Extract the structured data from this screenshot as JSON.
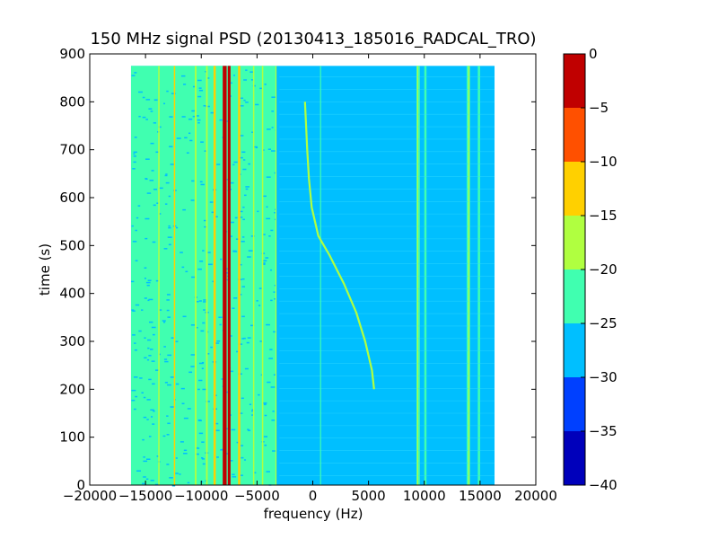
{
  "chart_data": {
    "type": "heatmap",
    "title": "150 MHz signal PSD (20130413_185016_RADCAL_TRO)",
    "xlabel": "frequency (Hz)",
    "ylabel": "time (s)",
    "xlim": [
      -20000,
      20000
    ],
    "ylim": [
      0,
      900
    ],
    "x_ticks": [
      -20000,
      -15000,
      -10000,
      -5000,
      0,
      5000,
      10000,
      15000,
      20000
    ],
    "y_ticks": [
      0,
      100,
      200,
      300,
      400,
      500,
      600,
      700,
      800,
      900
    ],
    "data_extent": {
      "x": [
        -16300,
        16300
      ],
      "y": [
        0,
        875
      ]
    },
    "background_level": -27.5,
    "colorbar": {
      "levels": [
        -40,
        -35,
        -30,
        -25,
        -20,
        -15,
        -10,
        -5,
        0
      ],
      "tick_labels": [
        "0",
        "−5",
        "−10",
        "−15",
        "−20",
        "−25",
        "−30",
        "−35",
        "−40"
      ],
      "colors": [
        "#0000bb",
        "#0040ff",
        "#00bfff",
        "#40ffb0",
        "#b0ff40",
        "#ffd000",
        "#ff5000",
        "#c00000"
      ]
    },
    "band_columns": [
      {
        "x_range": [
          -16300,
          -3300
        ],
        "level": -22.5
      },
      {
        "x_range": [
          9300,
          9600
        ],
        "level": -22.5
      },
      {
        "x_range": [
          10000,
          10200
        ],
        "level": -22.5
      },
      {
        "x_range": [
          13800,
          14100
        ],
        "level": -22.5
      },
      {
        "x_range": [
          14800,
          15000
        ],
        "level": -22.5
      }
    ],
    "carrier_lines": [
      {
        "x": -7900,
        "width_hz": 350,
        "level": -2.5
      },
      {
        "x": -7500,
        "width_hz": 250,
        "level": -2.5
      },
      {
        "x": -8800,
        "width_hz": 200,
        "level": -12.5
      },
      {
        "x": -6600,
        "width_hz": 200,
        "level": -12.5
      },
      {
        "x": -10500,
        "width_hz": 150,
        "level": -17.5
      },
      {
        "x": -9500,
        "width_hz": 150,
        "level": -17.5
      },
      {
        "x": -12400,
        "width_hz": 120,
        "level": -12.5
      },
      {
        "x": -13800,
        "width_hz": 120,
        "level": -17.5
      },
      {
        "x": -5300,
        "width_hz": 120,
        "level": -17.5
      },
      {
        "x": -4500,
        "width_hz": 120,
        "level": -17.5
      },
      {
        "x": -3300,
        "width_hz": 100,
        "level": -17.5
      },
      {
        "x": 700,
        "width_hz": 80,
        "level": -22.5
      },
      {
        "x": 9400,
        "width_hz": 100,
        "level": -17.5
      },
      {
        "x": 14000,
        "width_hz": 100,
        "level": -17.5
      }
    ],
    "doppler_trace": {
      "level": -17.5,
      "points": [
        {
          "x": -700,
          "y": 800
        },
        {
          "x": -500,
          "y": 700
        },
        {
          "x": -350,
          "y": 640
        },
        {
          "x": -100,
          "y": 580
        },
        {
          "x": 500,
          "y": 520
        },
        {
          "x": 1500,
          "y": 480
        },
        {
          "x": 2800,
          "y": 420
        },
        {
          "x": 3900,
          "y": 360
        },
        {
          "x": 4700,
          "y": 300
        },
        {
          "x": 5300,
          "y": 240
        },
        {
          "x": 5500,
          "y": 200
        }
      ]
    }
  }
}
